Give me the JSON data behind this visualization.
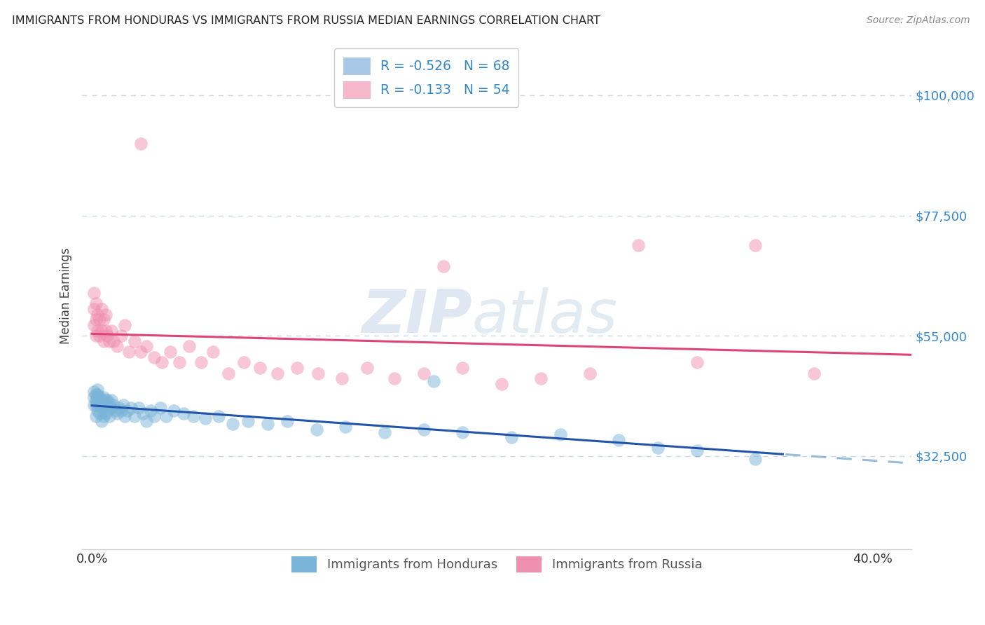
{
  "title": "IMMIGRANTS FROM HONDURAS VS IMMIGRANTS FROM RUSSIA MEDIAN EARNINGS CORRELATION CHART",
  "source": "Source: ZipAtlas.com",
  "ylabel": "Median Earnings",
  "x_lim": [
    -0.005,
    0.42
  ],
  "y_lim": [
    15000,
    110000
  ],
  "y_ticks": [
    32500,
    55000,
    77500,
    100000
  ],
  "y_tick_labels": [
    "$32,500",
    "$55,000",
    "$77,500",
    "$100,000"
  ],
  "watermark_zip": "ZIP",
  "watermark_atlas": "atlas",
  "legend_entries": [
    {
      "label": "R = -0.526   N = 68",
      "color": "#a8c8e8"
    },
    {
      "label": "R = -0.133   N = 54",
      "color": "#f8b8cc"
    }
  ],
  "legend_label_bottom": [
    "Immigrants from Honduras",
    "Immigrants from Russia"
  ],
  "honduras_color": "#7ab4d8",
  "russia_color": "#f090b0",
  "honduras_edge": "#5898c8",
  "russia_edge": "#e870a0",
  "honduras_line_color": "#2255aa",
  "russia_line_color": "#dd4477",
  "honduras_dash_color": "#99bbd8",
  "background_color": "#ffffff",
  "grid_color": "#c8d8e8",
  "title_color": "#222222",
  "axis_label_color": "#444444",
  "ytick_color": "#3388cc",
  "source_color": "#888888",
  "legend_text_color": "#3388cc",
  "bottom_legend_color": "#555555",
  "honduras_scatter_x": [
    0.001,
    0.001,
    0.001,
    0.002,
    0.002,
    0.002,
    0.002,
    0.003,
    0.003,
    0.003,
    0.003,
    0.003,
    0.004,
    0.004,
    0.004,
    0.005,
    0.005,
    0.005,
    0.006,
    0.006,
    0.006,
    0.007,
    0.007,
    0.007,
    0.008,
    0.008,
    0.009,
    0.009,
    0.01,
    0.01,
    0.011,
    0.012,
    0.013,
    0.014,
    0.015,
    0.016,
    0.017,
    0.018,
    0.02,
    0.022,
    0.024,
    0.026,
    0.028,
    0.03,
    0.032,
    0.035,
    0.038,
    0.042,
    0.047,
    0.052,
    0.058,
    0.065,
    0.072,
    0.08,
    0.09,
    0.1,
    0.115,
    0.13,
    0.15,
    0.17,
    0.19,
    0.215,
    0.24,
    0.27,
    0.29,
    0.31,
    0.34,
    0.175
  ],
  "honduras_scatter_y": [
    42000,
    43500,
    44500,
    40000,
    42000,
    43000,
    44000,
    41000,
    42500,
    43500,
    44000,
    45000,
    40500,
    42000,
    43500,
    39000,
    41500,
    43000,
    40000,
    42000,
    43500,
    40500,
    42000,
    43000,
    41000,
    43000,
    40000,
    42500,
    41500,
    43000,
    42000,
    41000,
    40500,
    41500,
    41000,
    42000,
    40000,
    41000,
    41500,
    40000,
    41500,
    40500,
    39000,
    41000,
    40000,
    41500,
    40000,
    41000,
    40500,
    40000,
    39500,
    40000,
    38500,
    39000,
    38500,
    39000,
    37500,
    38000,
    37000,
    37500,
    37000,
    36000,
    36500,
    35500,
    34000,
    33500,
    32000,
    46500
  ],
  "russia_scatter_x": [
    0.001,
    0.001,
    0.001,
    0.002,
    0.002,
    0.002,
    0.003,
    0.003,
    0.004,
    0.004,
    0.005,
    0.005,
    0.006,
    0.006,
    0.007,
    0.007,
    0.008,
    0.009,
    0.01,
    0.011,
    0.013,
    0.015,
    0.017,
    0.019,
    0.022,
    0.025,
    0.028,
    0.032,
    0.036,
    0.04,
    0.045,
    0.05,
    0.056,
    0.062,
    0.07,
    0.078,
    0.086,
    0.095,
    0.105,
    0.116,
    0.128,
    0.141,
    0.155,
    0.17,
    0.19,
    0.21,
    0.23,
    0.255,
    0.28,
    0.31,
    0.025,
    0.18,
    0.34,
    0.37
  ],
  "russia_scatter_y": [
    57000,
    60000,
    63000,
    55000,
    58000,
    61000,
    56000,
    59000,
    55000,
    58000,
    56000,
    60000,
    54000,
    58000,
    56000,
    59000,
    55000,
    54000,
    56000,
    54000,
    53000,
    55000,
    57000,
    52000,
    54000,
    52000,
    53000,
    51000,
    50000,
    52000,
    50000,
    53000,
    50000,
    52000,
    48000,
    50000,
    49000,
    48000,
    49000,
    48000,
    47000,
    49000,
    47000,
    48000,
    49000,
    46000,
    47000,
    48000,
    72000,
    50000,
    91000,
    68000,
    72000,
    48000
  ]
}
